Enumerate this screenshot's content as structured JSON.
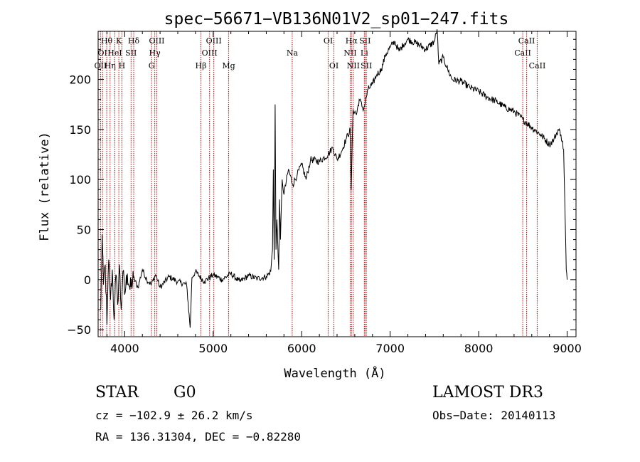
{
  "chart_data": {
    "type": "line",
    "title": "spec−56671−VB136N01V2_sp01−247.fits",
    "xlabel": "Wavelength (Å)",
    "ylabel": "Flux (relative)",
    "xlim": [
      3700,
      9100
    ],
    "ylim": [
      -57,
      248
    ],
    "xticks": [
      4000,
      5000,
      6000,
      7000,
      8000,
      9000
    ],
    "yticks": [
      -50,
      0,
      50,
      100,
      150,
      200
    ],
    "ytick_labels": [
      "−50",
      "0",
      "50",
      "100",
      "150",
      "200"
    ],
    "series": [
      {
        "name": "flux",
        "color": "#000000",
        "points": [
          [
            3730,
            -30
          ],
          [
            3745,
            45
          ],
          [
            3760,
            -5
          ],
          [
            3780,
            15
          ],
          [
            3800,
            -45
          ],
          [
            3820,
            20
          ],
          [
            3840,
            -20
          ],
          [
            3860,
            10
          ],
          [
            3880,
            -40
          ],
          [
            3900,
            5
          ],
          [
            3920,
            -25
          ],
          [
            3940,
            15
          ],
          [
            3960,
            -30
          ],
          [
            3980,
            8
          ],
          [
            4000,
            -15
          ],
          [
            4030,
            6
          ],
          [
            4060,
            -10
          ],
          [
            4100,
            2
          ],
          [
            4150,
            -8
          ],
          [
            4200,
            10
          ],
          [
            4250,
            0
          ],
          [
            4300,
            -5
          ],
          [
            4350,
            5
          ],
          [
            4400,
            -8
          ],
          [
            4500,
            3
          ],
          [
            4600,
            -2
          ],
          [
            4700,
            -5
          ],
          [
            4740,
            -48
          ],
          [
            4760,
            2
          ],
          [
            4800,
            8
          ],
          [
            4900,
            -2
          ],
          [
            5000,
            5
          ],
          [
            5100,
            0
          ],
          [
            5200,
            6
          ],
          [
            5300,
            -2
          ],
          [
            5400,
            4
          ],
          [
            5500,
            1
          ],
          [
            5600,
            3
          ],
          [
            5650,
            8
          ],
          [
            5670,
            30
          ],
          [
            5680,
            110
          ],
          [
            5690,
            20
          ],
          [
            5700,
            175
          ],
          [
            5710,
            30
          ],
          [
            5720,
            60
          ],
          [
            5740,
            10
          ],
          [
            5750,
            80
          ],
          [
            5760,
            40
          ],
          [
            5780,
            100
          ],
          [
            5800,
            85
          ],
          [
            5850,
            110
          ],
          [
            5900,
            95
          ],
          [
            5950,
            105
          ],
          [
            6000,
            115
          ],
          [
            6050,
            100
          ],
          [
            6100,
            120
          ],
          [
            6200,
            118
          ],
          [
            6300,
            125
          ],
          [
            6350,
            132
          ],
          [
            6400,
            120
          ],
          [
            6450,
            128
          ],
          [
            6500,
            140
          ],
          [
            6550,
            150
          ],
          [
            6560,
            90
          ],
          [
            6580,
            170
          ],
          [
            6620,
            165
          ],
          [
            6650,
            180
          ],
          [
            6700,
            170
          ],
          [
            6750,
            190
          ],
          [
            6800,
            195
          ],
          [
            6850,
            205
          ],
          [
            6900,
            210
          ],
          [
            6950,
            225
          ],
          [
            7000,
            232
          ],
          [
            7050,
            238
          ],
          [
            7100,
            228
          ],
          [
            7150,
            235
          ],
          [
            7200,
            240
          ],
          [
            7300,
            236
          ],
          [
            7400,
            230
          ],
          [
            7500,
            238
          ],
          [
            7530,
            250
          ],
          [
            7550,
            215
          ],
          [
            7600,
            222
          ],
          [
            7650,
            210
          ],
          [
            7700,
            200
          ],
          [
            7800,
            198
          ],
          [
            7900,
            192
          ],
          [
            8000,
            188
          ],
          [
            8100,
            182
          ],
          [
            8200,
            178
          ],
          [
            8300,
            172
          ],
          [
            8400,
            168
          ],
          [
            8500,
            160
          ],
          [
            8600,
            152
          ],
          [
            8700,
            145
          ],
          [
            8800,
            135
          ],
          [
            8850,
            140
          ],
          [
            8900,
            150
          ],
          [
            8930,
            145
          ],
          [
            8960,
            130
          ],
          [
            8990,
            10
          ],
          [
            9000,
            0
          ]
        ]
      }
    ],
    "line_markers": [
      {
        "wave": 3727,
        "label": "OII",
        "row": 2
      },
      {
        "wave": 3750,
        "label": "OI",
        "row": 1
      },
      {
        "wave": 3797,
        "label": "Hθ",
        "row": 0
      },
      {
        "wave": 3835,
        "label": "Hη",
        "row": 2
      },
      {
        "wave": 3889,
        "label": "HeI",
        "row": 1
      },
      {
        "wave": 3934,
        "label": "K",
        "row": 0
      },
      {
        "wave": 3969,
        "label": "H",
        "row": 2
      },
      {
        "wave": 4072,
        "label": "SII",
        "row": 1
      },
      {
        "wave": 4102,
        "label": "Hδ",
        "row": 0
      },
      {
        "wave": 4304,
        "label": "G",
        "row": 2
      },
      {
        "wave": 4340,
        "label": "Hγ",
        "row": 1
      },
      {
        "wave": 4363,
        "label": "OIII",
        "row": 0
      },
      {
        "wave": 4861,
        "label": "Hβ",
        "row": 2
      },
      {
        "wave": 4959,
        "label": "OIII",
        "row": 1
      },
      {
        "wave": 5007,
        "label": "OIII",
        "row": 0
      },
      {
        "wave": 5175,
        "label": "Mg",
        "row": 2
      },
      {
        "wave": 5893,
        "label": "Na",
        "row": 1
      },
      {
        "wave": 6300,
        "label": "OI",
        "row": 0
      },
      {
        "wave": 6364,
        "label": "OI",
        "row": 2
      },
      {
        "wave": 6548,
        "label": "NII",
        "row": 1
      },
      {
        "wave": 6563,
        "label": "Hα",
        "row": 0
      },
      {
        "wave": 6583,
        "label": "NII",
        "row": 2
      },
      {
        "wave": 6708,
        "label": "Li",
        "row": 1
      },
      {
        "wave": 6716,
        "label": "SII",
        "row": 0
      },
      {
        "wave": 6731,
        "label": "SII",
        "row": 2
      },
      {
        "wave": 8498,
        "label": "CaII",
        "row": 1
      },
      {
        "wave": 8542,
        "label": "CaII",
        "row": 0
      },
      {
        "wave": 8662,
        "label": "CaII",
        "row": 2
      }
    ],
    "marker_color": "#cc0000"
  },
  "info": {
    "object_class": "STAR",
    "subclass": "G0",
    "survey": "LAMOST DR3",
    "velocity": "cz = −102.9 ± 26.2 km/s",
    "obs_date": "Obs−Date: 20140113",
    "coords": "RA = 136.31304, DEC =  −0.82280"
  }
}
